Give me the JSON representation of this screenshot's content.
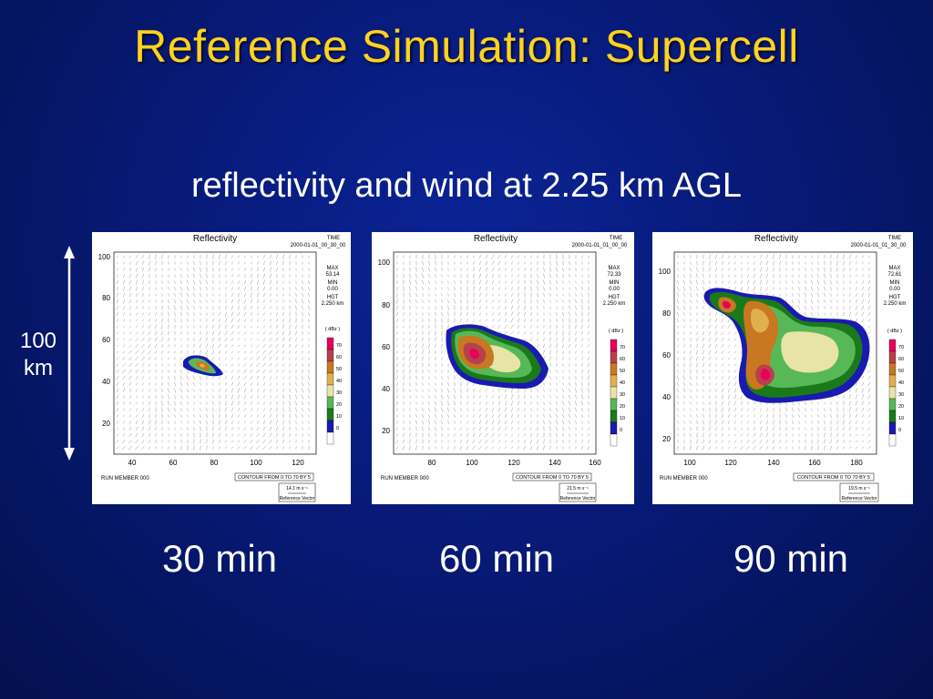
{
  "slide": {
    "title": "Reference Simulation:  Supercell",
    "subtitle": "reflectivity and wind at 2.25 km AGL",
    "scale_label_value": "100",
    "scale_label_unit": "km",
    "background_color": "#071a78",
    "title_color": "#ffd21f"
  },
  "panels": [
    {
      "caption": "30 min",
      "plot_title": "Reflectivity",
      "time_label": "TIME",
      "time_value": "2000-01-01_00_30_00",
      "max_label": "MAX",
      "max_value": "53.14",
      "min_label": "MIN",
      "min_value": "0.00",
      "hgt_label": "HGT",
      "hgt_value": "2.250 km",
      "x_ticks": [
        "40",
        "60",
        "80",
        "100",
        "120"
      ],
      "y_ticks": [
        "100",
        "80",
        "60",
        "40",
        "20"
      ],
      "run_member": "RUN MEMBER 000",
      "contour_text": "CONTOUR FROM 0 TO 70 BY 5",
      "ref_vector_value": "14.1 m s⁻¹",
      "ref_vector_label": "Reference Vector"
    },
    {
      "caption": "60 min",
      "plot_title": "Reflectivity",
      "time_label": "TIME",
      "time_value": "2000-01-01_01_00_00",
      "max_label": "MAX",
      "max_value": "72.33",
      "min_label": "MIN",
      "min_value": "0.00",
      "hgt_label": "HGT",
      "hgt_value": "2.250 km",
      "x_ticks": [
        "80",
        "100",
        "120",
        "140",
        "160"
      ],
      "y_ticks": [
        "100",
        "80",
        "60",
        "40",
        "20"
      ],
      "run_member": "RUN MEMBER 000",
      "contour_text": "CONTOUR FROM 0 TO 70 BY 5",
      "ref_vector_value": "21.5 m s⁻¹",
      "ref_vector_label": "Reference Vector"
    },
    {
      "caption": "90 min",
      "plot_title": "Reflectivity",
      "time_label": "TIME",
      "time_value": "2000-01-01_01_30_00",
      "max_label": "MAX",
      "max_value": "72.61",
      "min_label": "MIN",
      "min_value": "0.00",
      "hgt_label": "HGT",
      "hgt_value": "2.250 km",
      "x_ticks": [
        "100",
        "120",
        "140",
        "160",
        "180"
      ],
      "y_ticks": [
        "100",
        "80",
        "60",
        "40",
        "20"
      ],
      "run_member": "RUN MEMBER 000",
      "contour_text": "CONTOUR FROM 0 TO 70 BY 5",
      "ref_vector_value": "19.5 m s⁻¹",
      "ref_vector_label": "Reference Vector"
    }
  ],
  "legend": {
    "unit_label": "( dBz )",
    "levels": [
      "70",
      "60",
      "50",
      "40",
      "30",
      "20",
      "10",
      "0"
    ],
    "colors": [
      "#e8005a",
      "#b8404c",
      "#c87820",
      "#e0b050",
      "#e8e4a8",
      "#58b858",
      "#1a7a1a",
      "#1a1ab0",
      "#ffffff"
    ]
  }
}
